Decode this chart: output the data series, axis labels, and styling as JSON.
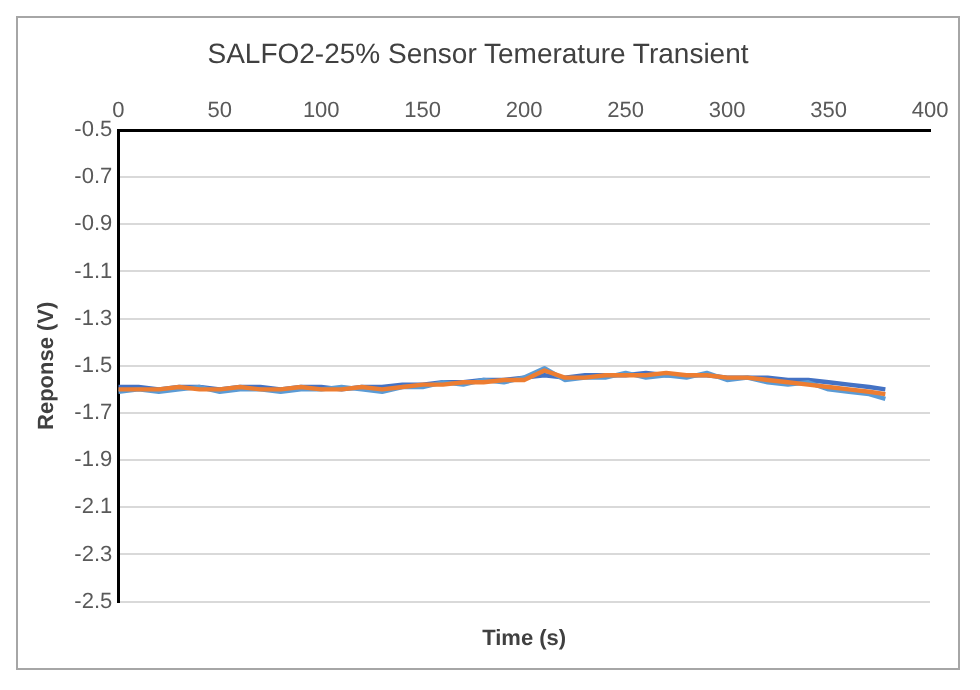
{
  "chart_data": {
    "type": "line",
    "title": "SALFO2-25% Sensor Temerature Transient",
    "xlabel": "Time (s)",
    "ylabel": "Reponse (V)",
    "x": [
      0,
      10,
      20,
      30,
      40,
      50,
      60,
      70,
      80,
      90,
      100,
      110,
      120,
      130,
      140,
      150,
      160,
      170,
      180,
      190,
      200,
      210,
      220,
      230,
      240,
      250,
      260,
      270,
      280,
      290,
      300,
      310,
      320,
      330,
      340,
      350,
      360,
      370,
      378
    ],
    "series": [
      {
        "color": "#ed7d31",
        "values": [
          -1.6,
          -1.6,
          -1.6,
          -1.59,
          -1.6,
          -1.6,
          -1.59,
          -1.6,
          -1.6,
          -1.59,
          -1.6,
          -1.6,
          -1.59,
          -1.6,
          -1.59,
          -1.58,
          -1.58,
          -1.57,
          -1.57,
          -1.56,
          -1.56,
          -1.52,
          -1.55,
          -1.55,
          -1.54,
          -1.54,
          -1.54,
          -1.53,
          -1.54,
          -1.54,
          -1.55,
          -1.55,
          -1.56,
          -1.57,
          -1.58,
          -1.59,
          -1.6,
          -1.61,
          -1.62
        ]
      },
      {
        "color": "#5b9bd5",
        "values": [
          -1.61,
          -1.6,
          -1.61,
          -1.6,
          -1.59,
          -1.61,
          -1.6,
          -1.6,
          -1.61,
          -1.6,
          -1.6,
          -1.59,
          -1.6,
          -1.61,
          -1.59,
          -1.59,
          -1.57,
          -1.58,
          -1.56,
          -1.57,
          -1.55,
          -1.51,
          -1.56,
          -1.55,
          -1.55,
          -1.53,
          -1.55,
          -1.54,
          -1.55,
          -1.53,
          -1.56,
          -1.55,
          -1.57,
          -1.58,
          -1.57,
          -1.6,
          -1.61,
          -1.62,
          -1.64
        ]
      },
      {
        "color": "#4472c4",
        "values": [
          -1.59,
          -1.59,
          -1.6,
          -1.59,
          -1.59,
          -1.6,
          -1.59,
          -1.59,
          -1.6,
          -1.59,
          -1.59,
          -1.6,
          -1.59,
          -1.59,
          -1.58,
          -1.58,
          -1.57,
          -1.57,
          -1.56,
          -1.56,
          -1.55,
          -1.54,
          -1.55,
          -1.54,
          -1.54,
          -1.54,
          -1.53,
          -1.54,
          -1.54,
          -1.54,
          -1.55,
          -1.55,
          -1.55,
          -1.56,
          -1.56,
          -1.57,
          -1.58,
          -1.59,
          -1.6
        ]
      }
    ],
    "xlim": [
      0,
      400
    ],
    "xticks": [
      0,
      50,
      100,
      150,
      200,
      250,
      300,
      350,
      400
    ],
    "ylim": [
      -2.5,
      -0.5
    ],
    "yticks": [
      -2.5,
      -2.3,
      -2.1,
      -1.9,
      -1.7,
      -1.5,
      -1.3,
      -1.1,
      -0.9,
      -0.7,
      -0.5
    ],
    "grid": "y",
    "legend": false,
    "marker": "none",
    "line_style": "solid"
  }
}
